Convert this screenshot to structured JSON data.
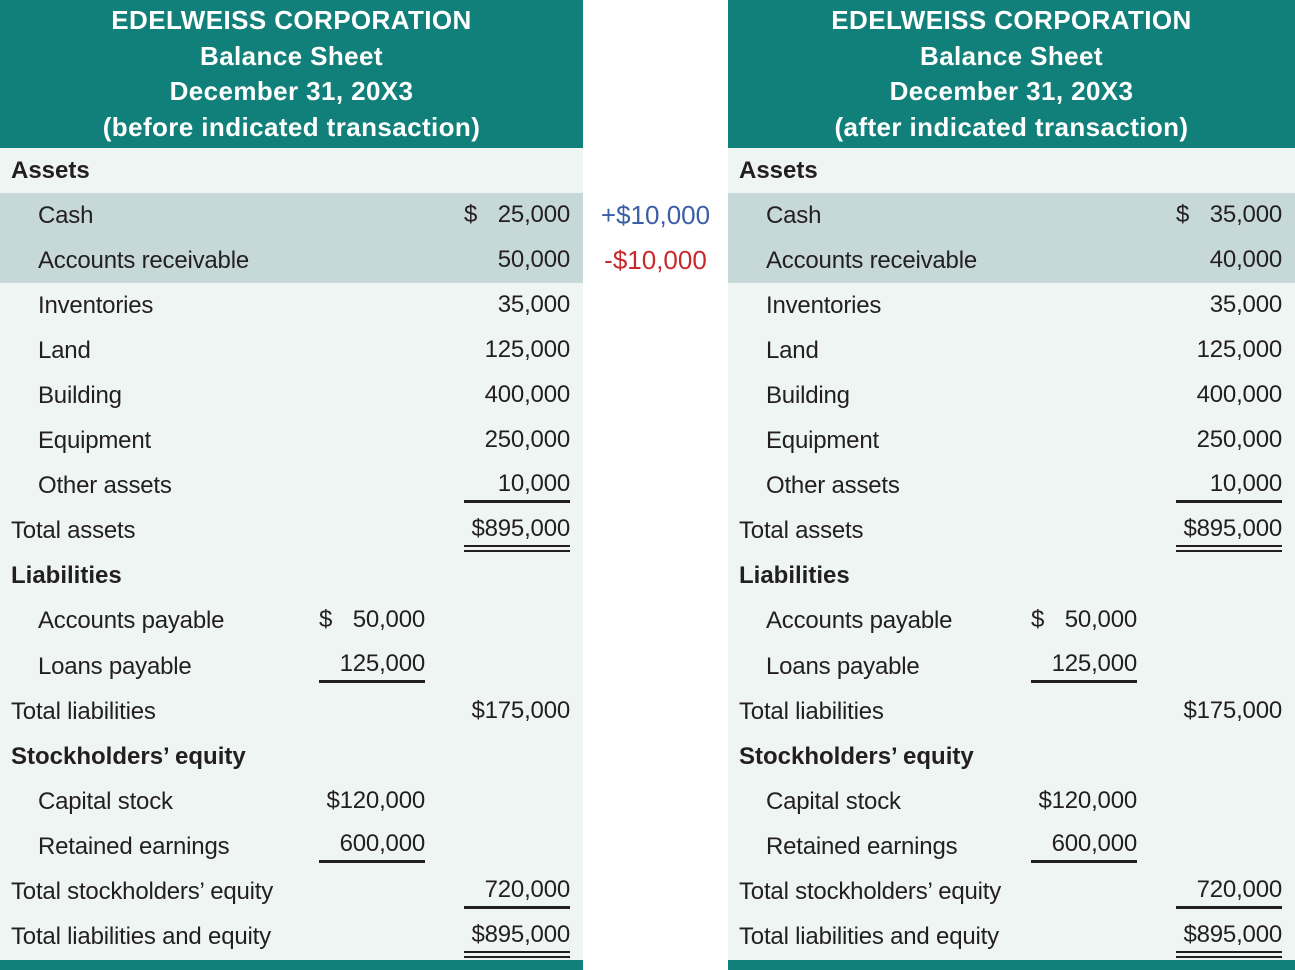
{
  "colors": {
    "teal": "#12807a",
    "panel_bg": "#eff5f3",
    "highlight": "#c7d8d8",
    "text": "#231f20",
    "plus_blue": "#3b5fa5",
    "minus_red": "#c8292c"
  },
  "annotations": {
    "cash_change": "+$10,000",
    "receivable_change": "-$10,000"
  },
  "left_panel": {
    "header": [
      "EDELWEISS CORPORATION",
      "Balance Sheet",
      "December 31, 20X3",
      "(before indicated transaction)"
    ],
    "rows": [
      {
        "type": "section",
        "label": "Assets"
      },
      {
        "type": "item",
        "highlight": true,
        "label": "Cash",
        "col2": {
          "dollar": "$",
          "value": "25,000"
        }
      },
      {
        "type": "item",
        "highlight": true,
        "label": "Accounts receivable",
        "col2": {
          "value": "50,000"
        }
      },
      {
        "type": "item",
        "label": "Inventories",
        "col2": {
          "value": "35,000"
        }
      },
      {
        "type": "item",
        "label": "Land",
        "col2": {
          "value": "125,000"
        }
      },
      {
        "type": "item",
        "label": "Building",
        "col2": {
          "value": "400,000"
        }
      },
      {
        "type": "item",
        "label": "Equipment",
        "col2": {
          "value": "250,000"
        }
      },
      {
        "type": "item",
        "label": "Other assets",
        "col2": {
          "value": "10,000",
          "underline": "single"
        }
      },
      {
        "type": "total",
        "label": "Total assets",
        "col2": {
          "value": "$895,000",
          "underline": "double"
        }
      },
      {
        "type": "section",
        "label": "Liabilities"
      },
      {
        "type": "item",
        "label": "Accounts payable",
        "col1": {
          "dollar": "$",
          "value": "50,000"
        }
      },
      {
        "type": "item",
        "label": "Loans payable",
        "col1": {
          "value": "125,000",
          "underline": "single"
        }
      },
      {
        "type": "total",
        "label": "Total liabilities",
        "col2": {
          "value": "$175,000"
        }
      },
      {
        "type": "section",
        "label": "Stockholders’ equity"
      },
      {
        "type": "item",
        "label": "Capital stock",
        "col1": {
          "value": "$120,000"
        }
      },
      {
        "type": "item",
        "label": "Retained earnings",
        "col1": {
          "value": "600,000",
          "underline": "single"
        }
      },
      {
        "type": "total",
        "label": "Total stockholders’ equity",
        "col2": {
          "value": "720,000",
          "underline": "single"
        }
      },
      {
        "type": "total",
        "label": "Total liabilities and equity",
        "col2": {
          "value": "$895,000",
          "underline": "double"
        }
      }
    ]
  },
  "right_panel": {
    "header": [
      "EDELWEISS CORPORATION",
      "Balance Sheet",
      "December 31, 20X3",
      "(after indicated transaction)"
    ],
    "rows": [
      {
        "type": "section",
        "label": "Assets"
      },
      {
        "type": "item",
        "highlight": true,
        "label": "Cash",
        "col2": {
          "dollar": "$",
          "value": "35,000"
        }
      },
      {
        "type": "item",
        "highlight": true,
        "label": "Accounts receivable",
        "col2": {
          "value": "40,000"
        }
      },
      {
        "type": "item",
        "label": "Inventories",
        "col2": {
          "value": "35,000"
        }
      },
      {
        "type": "item",
        "label": "Land",
        "col2": {
          "value": "125,000"
        }
      },
      {
        "type": "item",
        "label": "Building",
        "col2": {
          "value": "400,000"
        }
      },
      {
        "type": "item",
        "label": "Equipment",
        "col2": {
          "value": "250,000"
        }
      },
      {
        "type": "item",
        "label": "Other assets",
        "col2": {
          "value": "10,000",
          "underline": "single"
        }
      },
      {
        "type": "total",
        "label": "Total assets",
        "col2": {
          "value": "$895,000",
          "underline": "double"
        }
      },
      {
        "type": "section",
        "label": "Liabilities"
      },
      {
        "type": "item",
        "label": "Accounts payable",
        "col1": {
          "dollar": "$",
          "value": "50,000"
        }
      },
      {
        "type": "item",
        "label": "Loans payable",
        "col1": {
          "value": "125,000",
          "underline": "single"
        }
      },
      {
        "type": "total",
        "label": "Total liabilities",
        "col2": {
          "value": "$175,000"
        }
      },
      {
        "type": "section",
        "label": "Stockholders’ equity"
      },
      {
        "type": "item",
        "label": "Capital stock",
        "col1": {
          "value": "$120,000"
        }
      },
      {
        "type": "item",
        "label": "Retained earnings",
        "col1": {
          "value": "600,000",
          "underline": "single"
        }
      },
      {
        "type": "total",
        "label": "Total stockholders’ equity",
        "col2": {
          "value": "720,000",
          "underline": "single"
        }
      },
      {
        "type": "total",
        "label": "Total liabilities and equity",
        "col2": {
          "value": "$895,000",
          "underline": "double"
        }
      }
    ]
  }
}
